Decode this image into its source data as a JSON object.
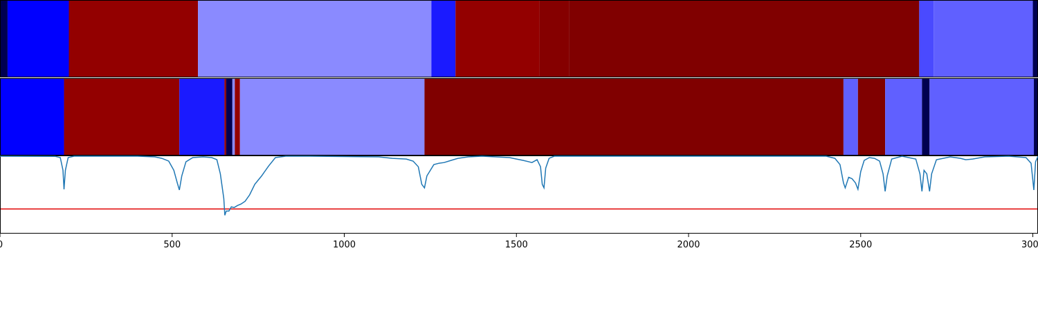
{
  "chart_data": [
    {
      "type": "heatmap",
      "colors": {
        "navy": "#000050",
        "blue": "#0000ff",
        "blue2": "#1a1aff",
        "lightblue": "#8a8aff",
        "medblue": "#6060ff",
        "medblue2": "#4a4aff",
        "red": "#930000",
        "darkred": "#850000",
        "maroon": "#800000"
      },
      "xlim": [
        0,
        3015
      ],
      "segments": [
        {
          "x0": 0,
          "x1": 22,
          "color": "navy"
        },
        {
          "x0": 22,
          "x1": 200,
          "color": "blue"
        },
        {
          "x0": 200,
          "x1": 575,
          "color": "red"
        },
        {
          "x0": 575,
          "x1": 1253,
          "color": "lightblue"
        },
        {
          "x0": 1253,
          "x1": 1323,
          "color": "blue2"
        },
        {
          "x0": 1323,
          "x1": 1567,
          "color": "red"
        },
        {
          "x0": 1567,
          "x1": 1653,
          "color": "darkred"
        },
        {
          "x0": 1653,
          "x1": 2670,
          "color": "maroon"
        },
        {
          "x0": 2670,
          "x1": 2712,
          "color": "medblue2"
        },
        {
          "x0": 2712,
          "x1": 3000,
          "color": "medblue"
        },
        {
          "x0": 3000,
          "x1": 3015,
          "color": "navy"
        }
      ]
    },
    {
      "type": "heatmap",
      "xlim": [
        0,
        3015
      ],
      "segments": [
        {
          "x0": 0,
          "x1": 186,
          "color": "blue"
        },
        {
          "x0": 186,
          "x1": 521,
          "color": "red"
        },
        {
          "x0": 521,
          "x1": 652,
          "color": "blue2"
        },
        {
          "x0": 652,
          "x1": 657,
          "color": "red"
        },
        {
          "x0": 657,
          "x1": 675,
          "color": "navy"
        },
        {
          "x0": 675,
          "x1": 682,
          "color": "lightblue"
        },
        {
          "x0": 682,
          "x1": 697,
          "color": "red"
        },
        {
          "x0": 697,
          "x1": 1233,
          "color": "lightblue"
        },
        {
          "x0": 1233,
          "x1": 2450,
          "color": "maroon"
        },
        {
          "x0": 2450,
          "x1": 2492,
          "color": "medblue"
        },
        {
          "x0": 2492,
          "x1": 2571,
          "color": "maroon"
        },
        {
          "x0": 2571,
          "x1": 2678,
          "color": "medblue"
        },
        {
          "x0": 2678,
          "x1": 2700,
          "color": "navy"
        },
        {
          "x0": 2700,
          "x1": 3003,
          "color": "medblue"
        },
        {
          "x0": 3003,
          "x1": 3015,
          "color": "navy"
        }
      ]
    },
    {
      "type": "line",
      "xlim": [
        0,
        3015
      ],
      "ylim": [
        -0.1,
        1.0
      ],
      "threshold": 0.25,
      "line_color": "#1f77b4",
      "threshold_color": "#e00000",
      "x": [
        0,
        160,
        175,
        183,
        186,
        190,
        198,
        215,
        400,
        450,
        470,
        490,
        505,
        515,
        521,
        528,
        540,
        560,
        590,
        615,
        630,
        640,
        650,
        653,
        657,
        665,
        672,
        680,
        690,
        700,
        712,
        725,
        740,
        760,
        780,
        800,
        830,
        870,
        900,
        1000,
        1100,
        1140,
        1180,
        1200,
        1215,
        1225,
        1233,
        1240,
        1250,
        1260,
        1275,
        1290,
        1310,
        1330,
        1360,
        1400,
        1440,
        1480,
        1500,
        1520,
        1545,
        1560,
        1570,
        1575,
        1580,
        1585,
        1595,
        1610,
        1700,
        2000,
        2400,
        2425,
        2440,
        2450,
        2455,
        2465,
        2475,
        2485,
        2492,
        2500,
        2510,
        2525,
        2540,
        2555,
        2565,
        2571,
        2577,
        2590,
        2620,
        2660,
        2672,
        2678,
        2684,
        2692,
        2700,
        2706,
        2720,
        2760,
        2790,
        2805,
        2825,
        2860,
        2930,
        2980,
        2995,
        3003,
        3008,
        3015
      ],
      "y": [
        1.0,
        0.998,
        0.98,
        0.8,
        0.53,
        0.8,
        0.98,
        1.0,
        1.0,
        0.99,
        0.97,
        0.93,
        0.8,
        0.62,
        0.52,
        0.72,
        0.92,
        0.98,
        0.99,
        0.98,
        0.95,
        0.75,
        0.4,
        0.16,
        0.22,
        0.22,
        0.28,
        0.27,
        0.3,
        0.32,
        0.36,
        0.45,
        0.6,
        0.72,
        0.86,
        0.98,
        1.0,
        1.0,
        1.0,
        0.995,
        0.99,
        0.97,
        0.96,
        0.93,
        0.85,
        0.6,
        0.55,
        0.72,
        0.8,
        0.88,
        0.9,
        0.91,
        0.94,
        0.97,
        0.99,
        1.0,
        0.99,
        0.98,
        0.96,
        0.94,
        0.91,
        0.95,
        0.85,
        0.6,
        0.55,
        0.83,
        0.97,
        1.0,
        1.0,
        1.0,
        1.0,
        0.97,
        0.88,
        0.62,
        0.55,
        0.7,
        0.68,
        0.62,
        0.53,
        0.78,
        0.94,
        0.98,
        0.97,
        0.93,
        0.75,
        0.5,
        0.72,
        0.96,
        1.0,
        0.96,
        0.75,
        0.5,
        0.8,
        0.75,
        0.5,
        0.75,
        0.95,
        0.99,
        0.97,
        0.95,
        0.96,
        0.99,
        1.0,
        0.98,
        0.9,
        0.52,
        0.92,
        1.0
      ],
      "xticks": [
        "0",
        "500",
        "1000",
        "1500",
        "2000",
        "2500",
        "3000"
      ],
      "xtick_values": [
        0,
        500,
        1000,
        1500,
        2000,
        2500,
        3000
      ]
    }
  ]
}
